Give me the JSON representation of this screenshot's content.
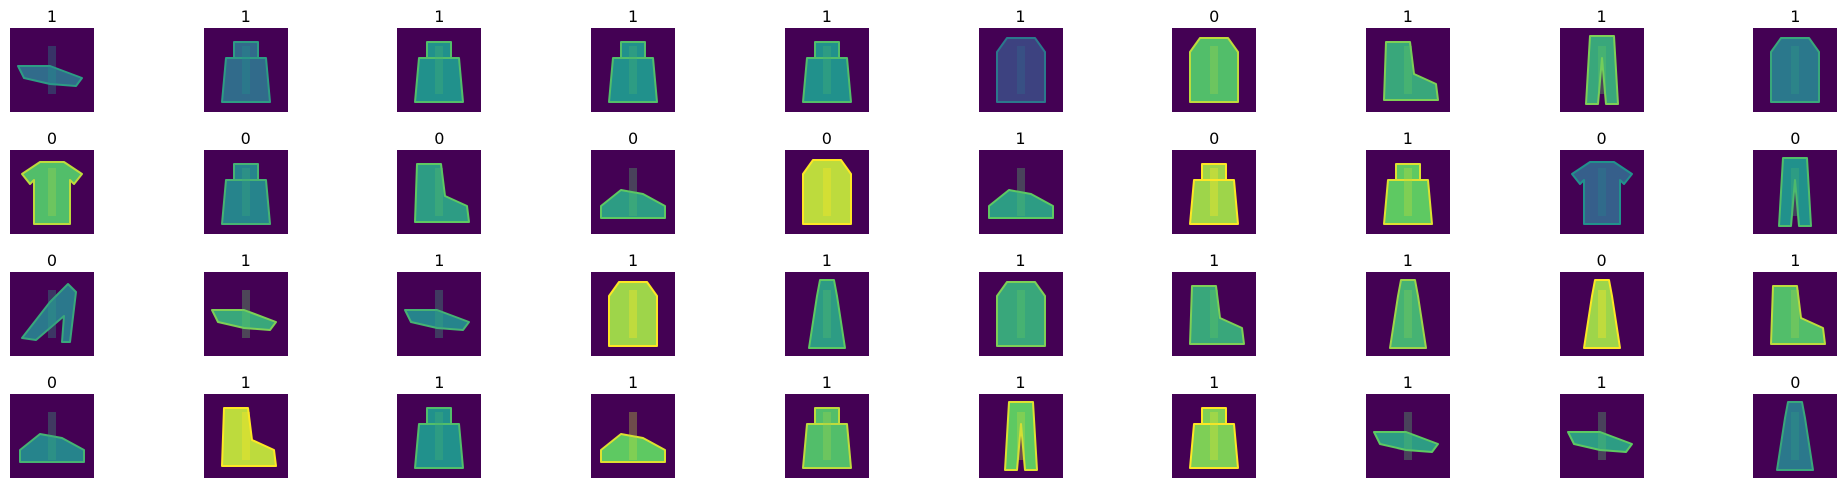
{
  "palette": {
    "background": "#440154",
    "dark": "#3b528b",
    "mid": "#21918c",
    "bright": "#5ec962",
    "max": "#fde725"
  },
  "items": [
    {
      "label": "1",
      "kind": "shoe-side",
      "level": 0.35
    },
    {
      "label": "1",
      "kind": "bag",
      "level": 0.35
    },
    {
      "label": "1",
      "kind": "bag",
      "level": 0.5
    },
    {
      "label": "1",
      "kind": "bag",
      "level": 0.5
    },
    {
      "label": "1",
      "kind": "bag",
      "level": 0.5
    },
    {
      "label": "1",
      "kind": "coat",
      "level": 0.2
    },
    {
      "label": "0",
      "kind": "coat",
      "level": 0.7
    },
    {
      "label": "1",
      "kind": "boot",
      "level": 0.6
    },
    {
      "label": "1",
      "kind": "trousers",
      "level": 0.6
    },
    {
      "label": "1",
      "kind": "coat",
      "level": 0.4
    },
    {
      "label": "0",
      "kind": "shirt",
      "level": 0.7
    },
    {
      "label": "0",
      "kind": "bag",
      "level": 0.45
    },
    {
      "label": "0",
      "kind": "boot",
      "level": 0.55
    },
    {
      "label": "0",
      "kind": "sneaker",
      "level": 0.55
    },
    {
      "label": "0",
      "kind": "coat",
      "level": 0.9
    },
    {
      "label": "1",
      "kind": "sneaker",
      "level": 0.55
    },
    {
      "label": "0",
      "kind": "bag",
      "level": 0.85
    },
    {
      "label": "1",
      "kind": "bag",
      "level": 0.75
    },
    {
      "label": "0",
      "kind": "shirt",
      "level": 0.3
    },
    {
      "label": "0",
      "kind": "trousers",
      "level": 0.5
    },
    {
      "label": "0",
      "kind": "sandal",
      "level": 0.4
    },
    {
      "label": "1",
      "kind": "shoe-side",
      "level": 0.6
    },
    {
      "label": "1",
      "kind": "shoe-side",
      "level": 0.45
    },
    {
      "label": "1",
      "kind": "coat",
      "level": 0.85
    },
    {
      "label": "1",
      "kind": "dress",
      "level": 0.55
    },
    {
      "label": "1",
      "kind": "coat",
      "level": 0.6
    },
    {
      "label": "1",
      "kind": "boot",
      "level": 0.6
    },
    {
      "label": "1",
      "kind": "dress",
      "level": 0.65
    },
    {
      "label": "0",
      "kind": "dress",
      "level": 0.85
    },
    {
      "label": "1",
      "kind": "boot",
      "level": 0.7
    },
    {
      "label": "0",
      "kind": "sneaker",
      "level": 0.45
    },
    {
      "label": "1",
      "kind": "boot",
      "level": 0.9
    },
    {
      "label": "1",
      "kind": "bag",
      "level": 0.5
    },
    {
      "label": "1",
      "kind": "sneaker",
      "level": 0.75
    },
    {
      "label": "1",
      "kind": "bag",
      "level": 0.7
    },
    {
      "label": "1",
      "kind": "trousers",
      "level": 0.75
    },
    {
      "label": "1",
      "kind": "bag",
      "level": 0.8
    },
    {
      "label": "1",
      "kind": "shoe-side",
      "level": 0.55
    },
    {
      "label": "1",
      "kind": "shoe-side",
      "level": 0.55
    },
    {
      "label": "0",
      "kind": "dress",
      "level": 0.4
    }
  ]
}
